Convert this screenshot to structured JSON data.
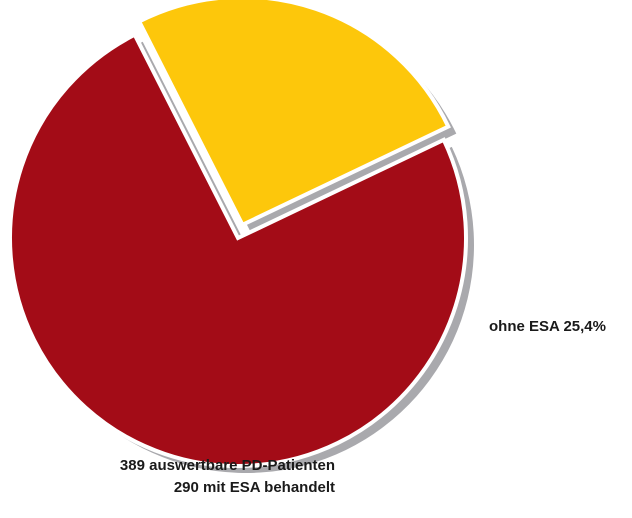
{
  "chart_data": {
    "type": "pie",
    "slices": [
      {
        "key": "with_esa",
        "value": 74.6,
        "color": "#a30c17",
        "label_lines": []
      },
      {
        "key": "without_esa",
        "value": 25.4,
        "color": "#fdc70b",
        "label_lines": [
          "ohne ESA 25,4%"
        ]
      }
    ],
    "note_lines": [
      "389 auswertbare PD-Patienten",
      "290 mit ESA behandelt"
    ],
    "shadow_color": "#a9a9ad",
    "separator_color": "#ffffff"
  }
}
